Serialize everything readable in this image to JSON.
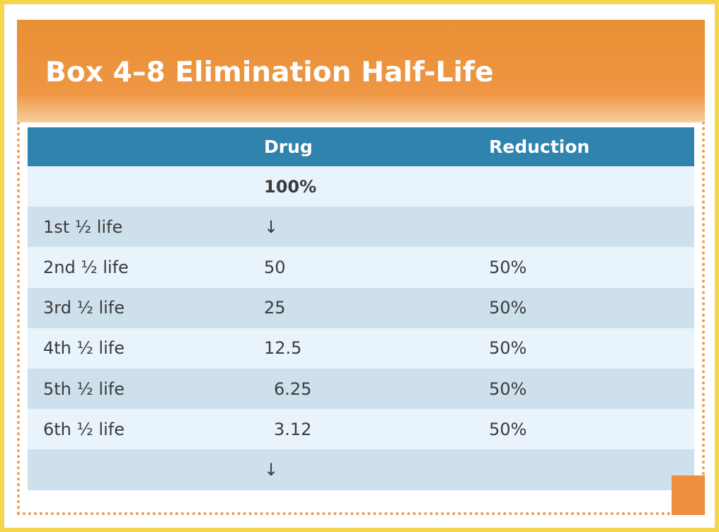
{
  "title": "Box 4–8 Elimination Half-Life",
  "columns": {
    "label": "",
    "drug": "Drug",
    "reduction": "Reduction"
  },
  "rows": [
    {
      "label": "",
      "drug": "100%",
      "reduction": ""
    },
    {
      "label": "1st ½ life",
      "drug": "↓",
      "reduction": ""
    },
    {
      "label": "2nd ½ life",
      "drug": "50",
      "reduction": "50%"
    },
    {
      "label": "3rd ½ life",
      "drug": "25",
      "reduction": "50%"
    },
    {
      "label": "4th ½ life",
      "drug": "12.5",
      "reduction": "50%"
    },
    {
      "label": "5th ½ life",
      "drug": "6.25",
      "reduction": "50%"
    },
    {
      "label": "6th ½ life",
      "drug": "3.12",
      "reduction": "50%"
    },
    {
      "label": "",
      "drug": "↓",
      "reduction": ""
    }
  ],
  "colors": {
    "page_border": "#f3d64b",
    "header_orange": "#ee9643",
    "table_header": "#2f83ad",
    "row_light": "#e8f3fb",
    "row_dark": "#cfe0ed",
    "corner_orange": "#ee8f3d"
  }
}
